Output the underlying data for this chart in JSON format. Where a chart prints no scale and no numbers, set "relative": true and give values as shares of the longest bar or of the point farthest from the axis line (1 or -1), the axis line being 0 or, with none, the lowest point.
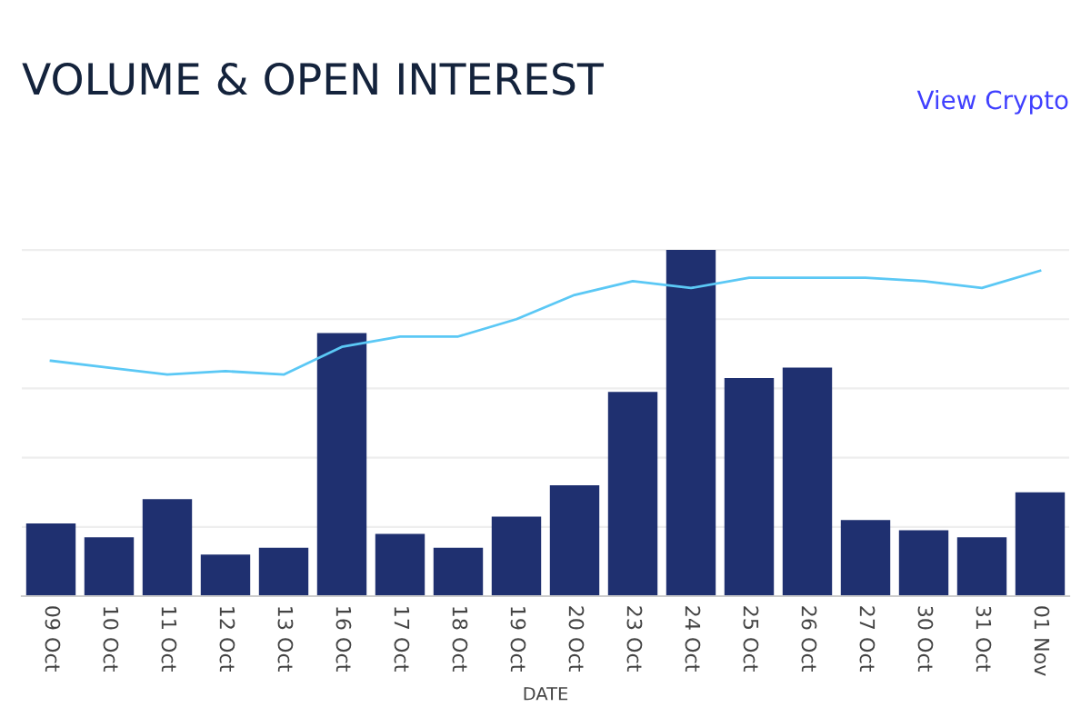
{
  "chart_data": {
    "type": "bar",
    "title": "VOLUME & OPEN INTEREST",
    "xlabel": "DATE",
    "annotations": [
      "View Crypto"
    ],
    "relative": true,
    "grid": "y",
    "categories": [
      "09 Oct",
      "10 Oct",
      "11 Oct",
      "12 Oct",
      "13 Oct",
      "16 Oct",
      "17 Oct",
      "18 Oct",
      "19 Oct",
      "20 Oct",
      "23 Oct",
      "24 Oct",
      "25 Oct",
      "26 Oct",
      "27 Oct",
      "30 Oct",
      "31 Oct",
      "01 Nov"
    ],
    "series": [
      {
        "color": "#1f3070",
        "values": [
          0.21,
          0.17,
          0.28,
          0.12,
          0.14,
          0.76,
          0.18,
          0.14,
          0.23,
          0.32,
          0.59,
          1,
          0.63,
          0.66,
          0.22,
          0.19,
          0.17,
          0.3
        ]
      },
      {
        "type": "line",
        "color": "#5bc8f5",
        "values": [
          0.68,
          0.66,
          0.64,
          0.65,
          0.64,
          0.72,
          0.75,
          0.75,
          0.8,
          0.87,
          0.91,
          0.89,
          0.92,
          0.92,
          0.92,
          0.91,
          0.89,
          0.94
        ]
      }
    ]
  }
}
